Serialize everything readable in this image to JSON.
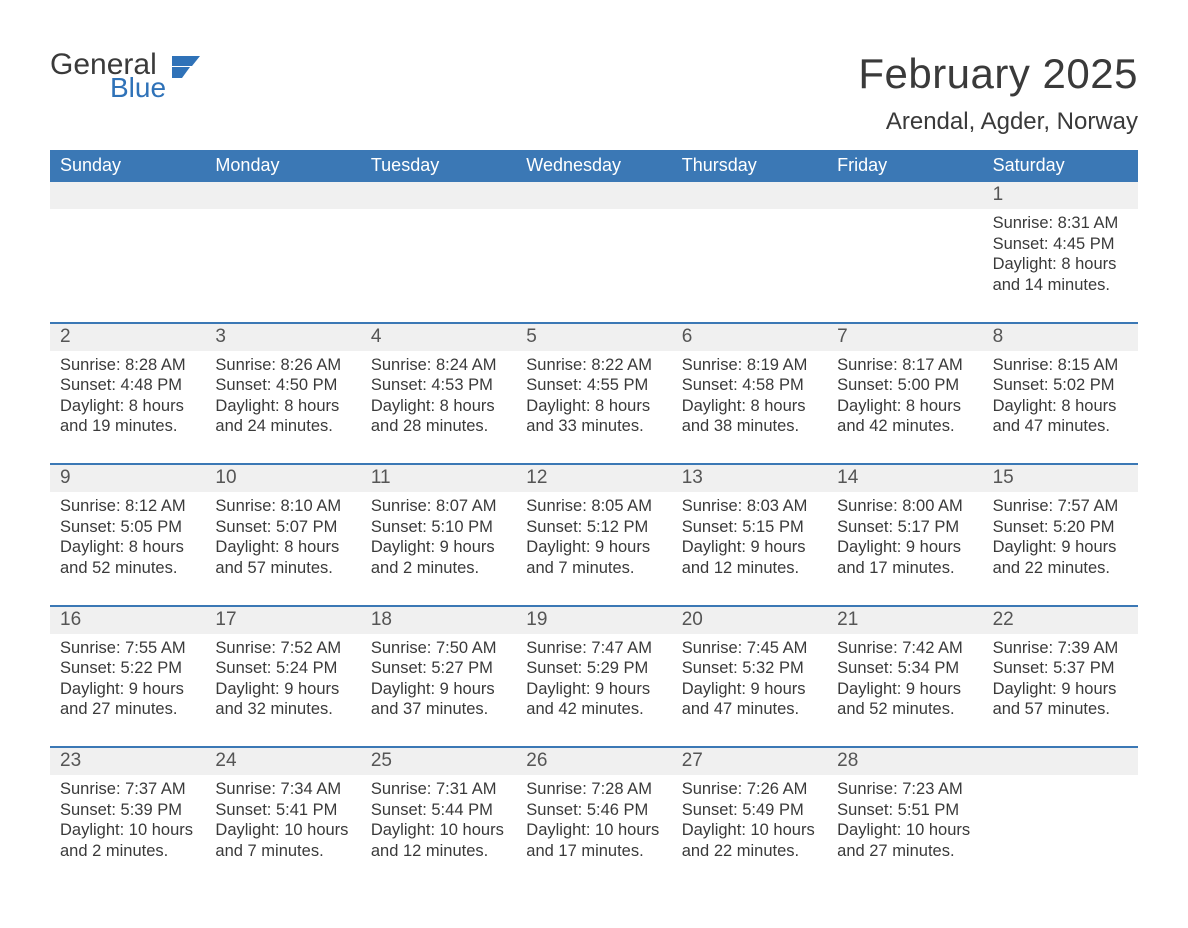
{
  "brand": {
    "word1": "General",
    "word2": "Blue",
    "icon_color": "#2f72b8"
  },
  "title": "February 2025",
  "location": "Arendal, Agder, Norway",
  "colors": {
    "header_bg": "#3b78b5",
    "header_text": "#ffffff",
    "numrow_bg": "#f0f0f0",
    "week_border": "#3b78b5",
    "body_text": "#3a3a3a",
    "daynum_text": "#555555"
  },
  "daynames": [
    "Sunday",
    "Monday",
    "Tuesday",
    "Wednesday",
    "Thursday",
    "Friday",
    "Saturday"
  ],
  "weeks": [
    [
      null,
      null,
      null,
      null,
      null,
      null,
      {
        "n": "1",
        "sr": "Sunrise: 8:31 AM",
        "ss": "Sunset: 4:45 PM",
        "dl": "Daylight: 8 hours and 14 minutes."
      }
    ],
    [
      {
        "n": "2",
        "sr": "Sunrise: 8:28 AM",
        "ss": "Sunset: 4:48 PM",
        "dl": "Daylight: 8 hours and 19 minutes."
      },
      {
        "n": "3",
        "sr": "Sunrise: 8:26 AM",
        "ss": "Sunset: 4:50 PM",
        "dl": "Daylight: 8 hours and 24 minutes."
      },
      {
        "n": "4",
        "sr": "Sunrise: 8:24 AM",
        "ss": "Sunset: 4:53 PM",
        "dl": "Daylight: 8 hours and 28 minutes."
      },
      {
        "n": "5",
        "sr": "Sunrise: 8:22 AM",
        "ss": "Sunset: 4:55 PM",
        "dl": "Daylight: 8 hours and 33 minutes."
      },
      {
        "n": "6",
        "sr": "Sunrise: 8:19 AM",
        "ss": "Sunset: 4:58 PM",
        "dl": "Daylight: 8 hours and 38 minutes."
      },
      {
        "n": "7",
        "sr": "Sunrise: 8:17 AM",
        "ss": "Sunset: 5:00 PM",
        "dl": "Daylight: 8 hours and 42 minutes."
      },
      {
        "n": "8",
        "sr": "Sunrise: 8:15 AM",
        "ss": "Sunset: 5:02 PM",
        "dl": "Daylight: 8 hours and 47 minutes."
      }
    ],
    [
      {
        "n": "9",
        "sr": "Sunrise: 8:12 AM",
        "ss": "Sunset: 5:05 PM",
        "dl": "Daylight: 8 hours and 52 minutes."
      },
      {
        "n": "10",
        "sr": "Sunrise: 8:10 AM",
        "ss": "Sunset: 5:07 PM",
        "dl": "Daylight: 8 hours and 57 minutes."
      },
      {
        "n": "11",
        "sr": "Sunrise: 8:07 AM",
        "ss": "Sunset: 5:10 PM",
        "dl": "Daylight: 9 hours and 2 minutes."
      },
      {
        "n": "12",
        "sr": "Sunrise: 8:05 AM",
        "ss": "Sunset: 5:12 PM",
        "dl": "Daylight: 9 hours and 7 minutes."
      },
      {
        "n": "13",
        "sr": "Sunrise: 8:03 AM",
        "ss": "Sunset: 5:15 PM",
        "dl": "Daylight: 9 hours and 12 minutes."
      },
      {
        "n": "14",
        "sr": "Sunrise: 8:00 AM",
        "ss": "Sunset: 5:17 PM",
        "dl": "Daylight: 9 hours and 17 minutes."
      },
      {
        "n": "15",
        "sr": "Sunrise: 7:57 AM",
        "ss": "Sunset: 5:20 PM",
        "dl": "Daylight: 9 hours and 22 minutes."
      }
    ],
    [
      {
        "n": "16",
        "sr": "Sunrise: 7:55 AM",
        "ss": "Sunset: 5:22 PM",
        "dl": "Daylight: 9 hours and 27 minutes."
      },
      {
        "n": "17",
        "sr": "Sunrise: 7:52 AM",
        "ss": "Sunset: 5:24 PM",
        "dl": "Daylight: 9 hours and 32 minutes."
      },
      {
        "n": "18",
        "sr": "Sunrise: 7:50 AM",
        "ss": "Sunset: 5:27 PM",
        "dl": "Daylight: 9 hours and 37 minutes."
      },
      {
        "n": "19",
        "sr": "Sunrise: 7:47 AM",
        "ss": "Sunset: 5:29 PM",
        "dl": "Daylight: 9 hours and 42 minutes."
      },
      {
        "n": "20",
        "sr": "Sunrise: 7:45 AM",
        "ss": "Sunset: 5:32 PM",
        "dl": "Daylight: 9 hours and 47 minutes."
      },
      {
        "n": "21",
        "sr": "Sunrise: 7:42 AM",
        "ss": "Sunset: 5:34 PM",
        "dl": "Daylight: 9 hours and 52 minutes."
      },
      {
        "n": "22",
        "sr": "Sunrise: 7:39 AM",
        "ss": "Sunset: 5:37 PM",
        "dl": "Daylight: 9 hours and 57 minutes."
      }
    ],
    [
      {
        "n": "23",
        "sr": "Sunrise: 7:37 AM",
        "ss": "Sunset: 5:39 PM",
        "dl": "Daylight: 10 hours and 2 minutes."
      },
      {
        "n": "24",
        "sr": "Sunrise: 7:34 AM",
        "ss": "Sunset: 5:41 PM",
        "dl": "Daylight: 10 hours and 7 minutes."
      },
      {
        "n": "25",
        "sr": "Sunrise: 7:31 AM",
        "ss": "Sunset: 5:44 PM",
        "dl": "Daylight: 10 hours and 12 minutes."
      },
      {
        "n": "26",
        "sr": "Sunrise: 7:28 AM",
        "ss": "Sunset: 5:46 PM",
        "dl": "Daylight: 10 hours and 17 minutes."
      },
      {
        "n": "27",
        "sr": "Sunrise: 7:26 AM",
        "ss": "Sunset: 5:49 PM",
        "dl": "Daylight: 10 hours and 22 minutes."
      },
      {
        "n": "28",
        "sr": "Sunrise: 7:23 AM",
        "ss": "Sunset: 5:51 PM",
        "dl": "Daylight: 10 hours and 27 minutes."
      },
      null
    ]
  ]
}
